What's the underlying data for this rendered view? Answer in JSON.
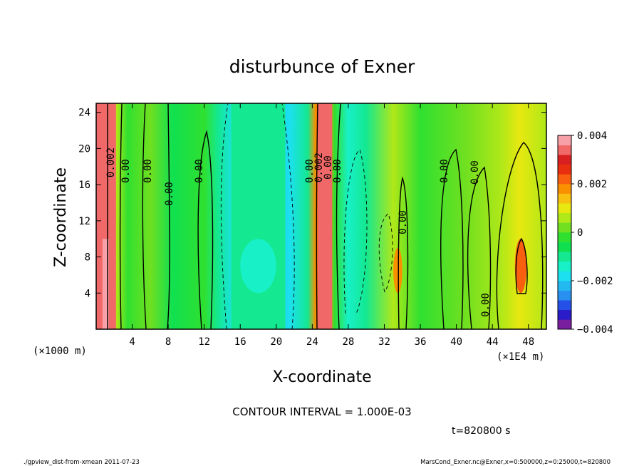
{
  "chart_data": {
    "type": "heatmap",
    "title": "disturbunce of Exner",
    "xlabel": "X-coordinate",
    "ylabel": "Z-coordinate",
    "x_unit_label": "(×1E4 m)",
    "y_unit_label": "(×1000 m)",
    "xlim": [
      0,
      50
    ],
    "ylim": [
      0,
      25
    ],
    "x_ticks": [
      4,
      8,
      12,
      16,
      20,
      24,
      28,
      32,
      36,
      40,
      44,
      48
    ],
    "y_ticks": [
      4,
      8,
      12,
      16,
      20,
      24
    ],
    "x_tick_labels": [
      "4",
      "8",
      "12",
      "16",
      "20",
      "24",
      "28",
      "32",
      "36",
      "40",
      "44",
      "48"
    ],
    "y_tick_labels": [
      "4",
      "8",
      "12",
      "16",
      "20",
      "24"
    ],
    "colorbar": {
      "min": -0.004,
      "max": 0.004,
      "labels": [
        "0.004",
        "0.002",
        "0",
        "−0.002",
        "−0.004"
      ],
      "colors": [
        "#7a1ea0",
        "#2a1cc8",
        "#2450e8",
        "#2890f0",
        "#22b8f0",
        "#1ce0f0",
        "#18f0c8",
        "#14e890",
        "#10e050",
        "#30e030",
        "#70e020",
        "#b0e818",
        "#e8e810",
        "#f8c010",
        "#f89000",
        "#f86010",
        "#e83010",
        "#d82020",
        "#f06868",
        "#f8a0a8"
      ]
    },
    "regions": [
      {
        "x": [
          0,
          2.2
        ],
        "level": 0.0034,
        "note": "strong positive band"
      },
      {
        "x": [
          24.6,
          26.2
        ],
        "level": 0.0034
      },
      {
        "x": [
          15,
          21
        ],
        "level": -0.0012
      },
      {
        "x": [
          16,
          20
        ],
        "z": [
          4,
          10
        ],
        "level": -0.0016
      },
      {
        "x": [
          46.5,
          47.8
        ],
        "z": [
          4,
          10
        ],
        "level": 0.0022
      },
      {
        "x": [
          33,
          34
        ],
        "z": [
          4,
          9
        ],
        "level": 0.0016
      }
    ],
    "contour_interval_text": "CONTOUR INTERVAL = 1.000E-03",
    "contour_labels": [
      "0.002",
      "0.00",
      "0.00",
      "0.00",
      "0.00",
      "0.00",
      "0.002",
      "0.00",
      "0.00",
      "0.00",
      "0.00",
      "0.00",
      "0.00"
    ],
    "time_text": "t=820800 s"
  },
  "footer": {
    "left": "./gpview_dist-from-xmean  2011-07-23",
    "right": "MarsCond_Exner.nc@Exner,x=0:500000,z=0:25000,t=820800"
  }
}
